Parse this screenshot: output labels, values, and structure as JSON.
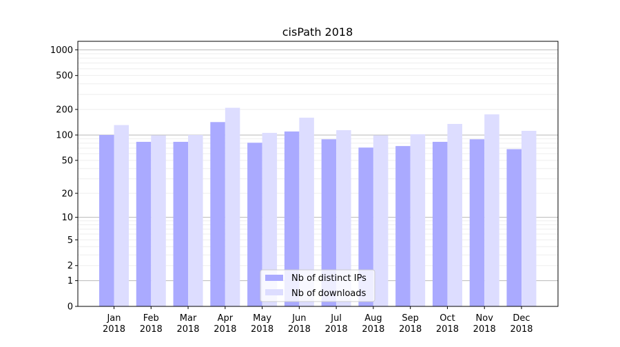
{
  "chart_data": {
    "type": "bar",
    "title": "cisPath 2018",
    "xlabel": "",
    "ylabel": "",
    "yscale": "log(1+y)",
    "ylim": [
      0,
      1200
    ],
    "yticks": [
      0,
      1,
      2,
      5,
      10,
      20,
      50,
      100,
      200,
      500,
      1000
    ],
    "grid": true,
    "legend_position": "lower-center",
    "categories": [
      "Jan\n2018",
      "Feb\n2018",
      "Mar\n2018",
      "Apr\n2018",
      "May\n2018",
      "Jun\n2018",
      "Jul\n2018",
      "Aug\n2018",
      "Sep\n2018",
      "Oct\n2018",
      "Nov\n2018",
      "Dec\n2018"
    ],
    "series": [
      {
        "name": "Nb of distinct IPs",
        "color": "#aaaaff",
        "values": [
          100,
          83,
          83,
          142,
          81,
          110,
          89,
          71,
          74,
          83,
          89,
          68
        ]
      },
      {
        "name": "Nb of downloads",
        "color": "#ddddff",
        "values": [
          131,
          99,
          100,
          209,
          106,
          160,
          114,
          99,
          102,
          135,
          175,
          112
        ]
      }
    ]
  }
}
